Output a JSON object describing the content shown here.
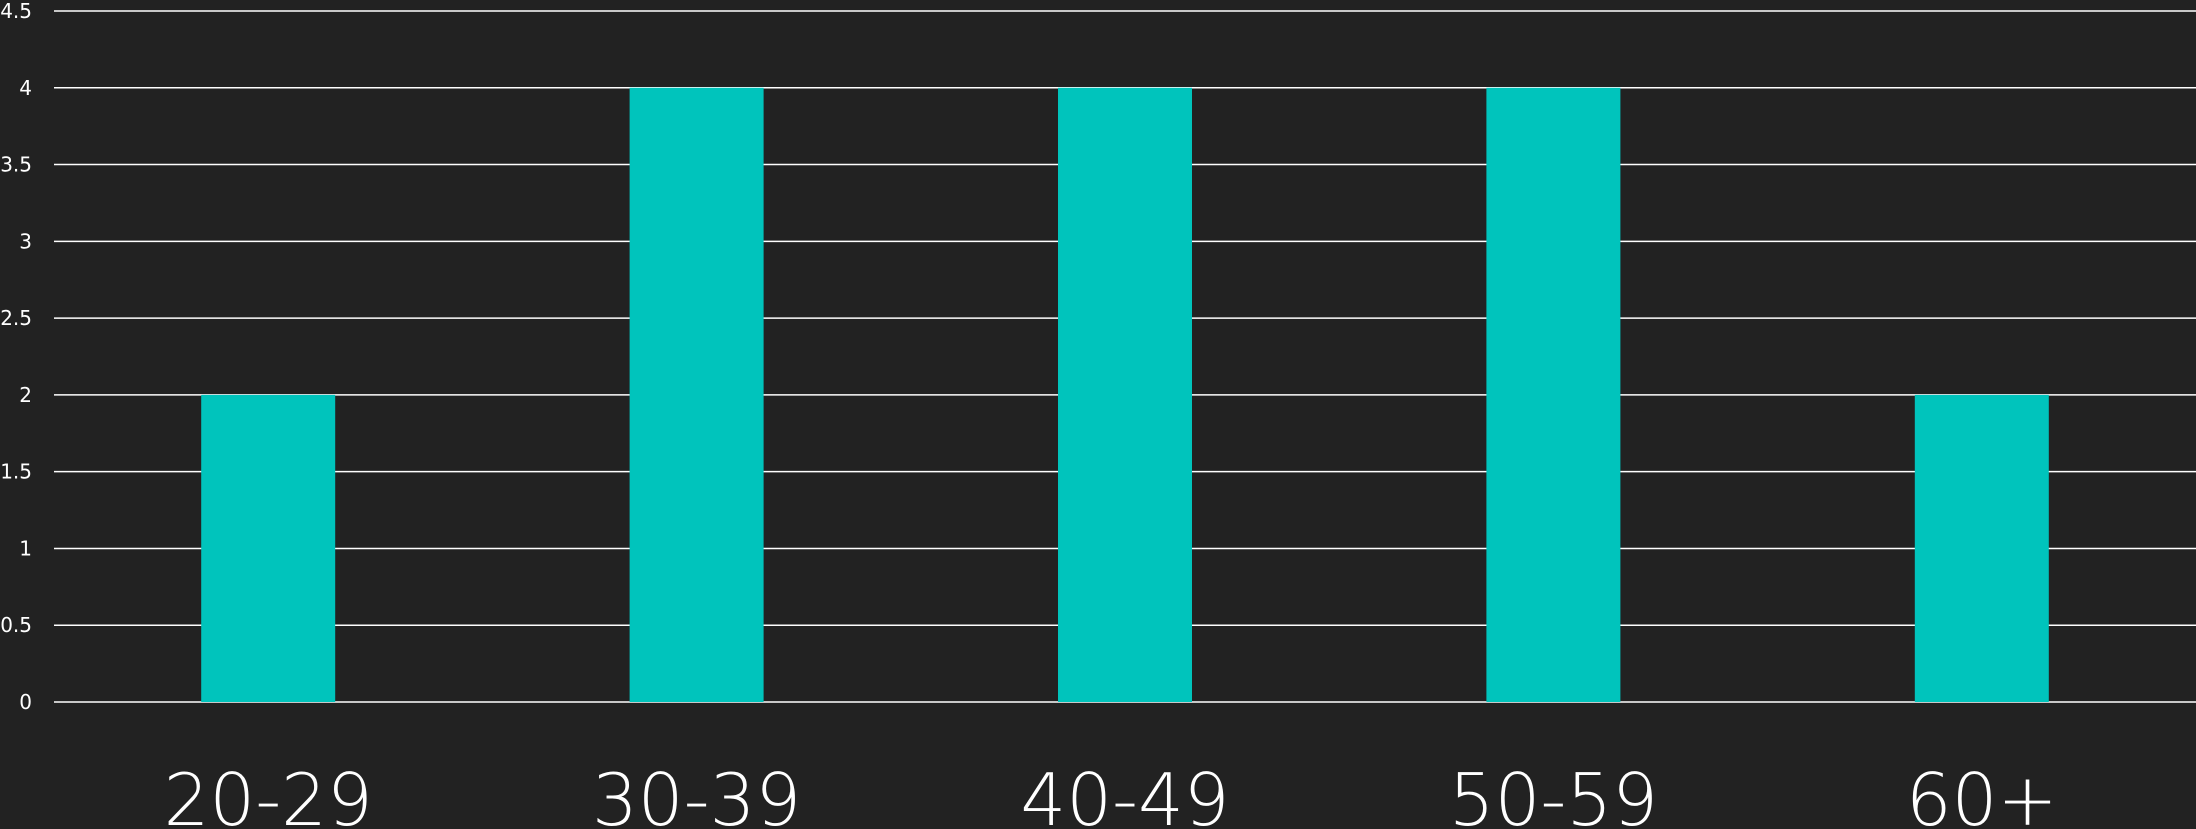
{
  "chart_data": {
    "type": "bar",
    "categories": [
      "20-29",
      "30-39",
      "40-49",
      "50-59",
      "60+"
    ],
    "values": [
      2,
      4,
      4,
      4,
      2
    ],
    "yticks": [
      "0",
      "0.5",
      "1",
      "1.5",
      "2",
      "2.5",
      "3",
      "3.5",
      "4",
      "4.5"
    ],
    "ylim": [
      0,
      4.5
    ],
    "grid": true,
    "legend": "none",
    "colors": {
      "background": "#222222",
      "bar": "#00C4BC",
      "grid": "#ffffff",
      "text": "#ffffff"
    }
  }
}
